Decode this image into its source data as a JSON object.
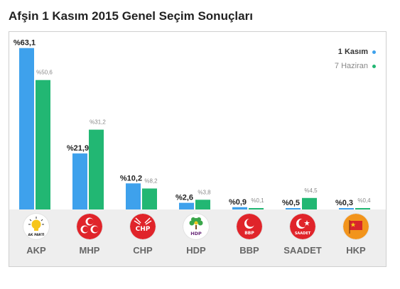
{
  "title": "Afşin 1 Kasım 2015 Genel Seçim Sonuçları",
  "colors": {
    "series_1": "#3ea1ec",
    "series_2": "#22b773",
    "band": "#eeeeee",
    "value_main": "#222222",
    "value_secondary": "#888888"
  },
  "chart_data": {
    "type": "bar",
    "title": "Afşin 1 Kasım 2015 Genel Seçim Sonuçları",
    "xlabel": "",
    "ylabel": "",
    "ylim": [
      0,
      70
    ],
    "grid": false,
    "legend_position": "top-right",
    "categories": [
      "AKP",
      "MHP",
      "CHP",
      "HDP",
      "BBP",
      "SAADET",
      "HKP"
    ],
    "series": [
      {
        "name": "1 Kasım",
        "values": [
          63.1,
          21.9,
          10.2,
          2.6,
          0.9,
          0.5,
          0.3
        ],
        "labels": [
          "%63,1",
          "%21,9",
          "%10,2",
          "%2,6",
          "%0,9",
          "%0,5",
          "%0,3"
        ]
      },
      {
        "name": "7 Haziran",
        "values": [
          50.6,
          31.2,
          8.2,
          3.8,
          0.1,
          4.5,
          0.4
        ],
        "labels": [
          "%50,6",
          "%31,2",
          "%8,2",
          "%3,8",
          "%0,1",
          "%4,5",
          "%0,4"
        ]
      }
    ]
  },
  "parties": [
    {
      "name": "AKP",
      "logo_icon": "akp-lightbulb-icon",
      "logo_text": "AK PARTİ",
      "logo_color": "#ffffff"
    },
    {
      "name": "MHP",
      "logo_icon": "mhp-three-crescents-icon",
      "logo_text": "",
      "logo_color": "#e0242a"
    },
    {
      "name": "CHP",
      "logo_icon": "chp-six-arrows-icon",
      "logo_text": "CHP",
      "logo_color": "#e0242a"
    },
    {
      "name": "HDP",
      "logo_icon": "hdp-tree-icon",
      "logo_text": "HDP",
      "logo_color": "#ffffff"
    },
    {
      "name": "BBP",
      "logo_icon": "bbp-crescent-icon",
      "logo_text": "BBP",
      "logo_color": "#e0242a"
    },
    {
      "name": "SAADET",
      "logo_icon": "saadet-crescent-star-icon",
      "logo_text": "SAADET",
      "logo_color": "#e0242a"
    },
    {
      "name": "HKP",
      "logo_icon": "hkp-flag-icon",
      "logo_text": "",
      "logo_color": "#f2941c"
    }
  ]
}
